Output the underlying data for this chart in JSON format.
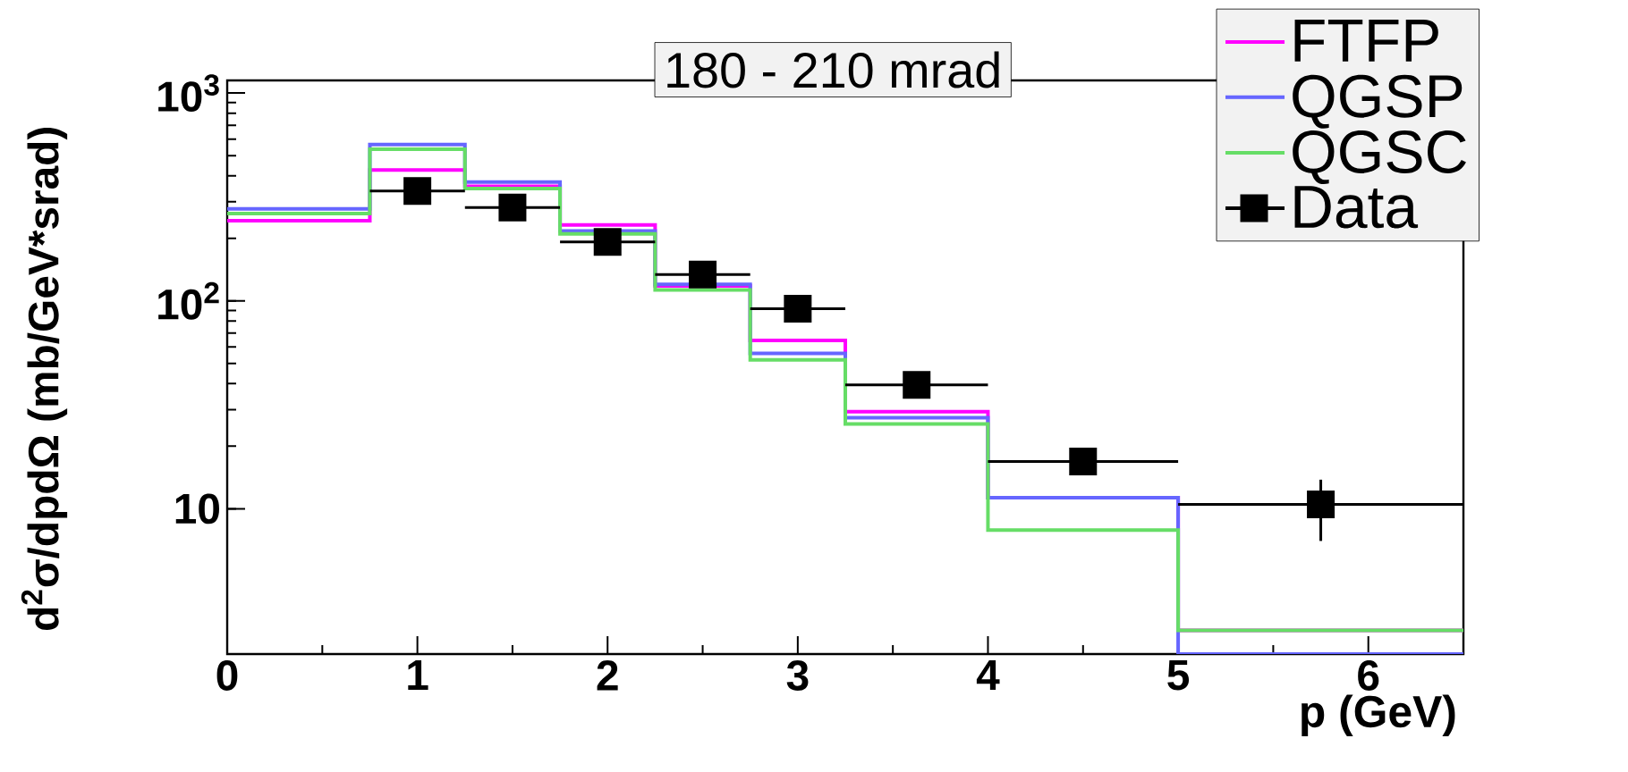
{
  "chart_data": {
    "type": "histogram",
    "title": "180 - 210 mrad",
    "xlabel": "p (GeV)",
    "ylabel": "d$^{2}$σ/dpdΩ (mb/GeV*srad)",
    "bins": [
      0,
      0.75,
      1.25,
      1.75,
      2.25,
      2.75,
      3.25,
      4,
      5,
      6.5
    ],
    "series": [
      {
        "name": "FTFP",
        "color": "#ff00ff",
        "values": [
          243,
          426,
          356,
          232,
          118,
          64.6,
          29.3,
          11.3,
          2.6
        ]
      },
      {
        "name": "QGSP",
        "color": "#6666ff",
        "values": [
          277,
          566,
          373,
          217,
          120,
          55.9,
          27.4,
          11.3,
          2
        ]
      },
      {
        "name": "QGSC",
        "color": "#66dd66",
        "values": [
          263,
          537,
          347,
          210,
          113,
          52,
          25.6,
          7.9,
          2.6
        ]
      },
      {
        "name": "Data",
        "type": "scatter",
        "color": "#000000",
        "marker": "square",
        "x": [
          1,
          1.5,
          2,
          2.5,
          3,
          3.625,
          4.5,
          5.75
        ],
        "values": [
          338,
          281,
          192,
          134,
          91.8,
          39.4,
          16.9,
          10.5
        ],
        "xerrors": [
          0.25,
          0.25,
          0.25,
          0.25,
          0.25,
          0.375,
          0.5,
          0.75
        ],
        "errors": [
          null,
          null,
          null,
          null,
          null,
          null,
          null,
          [
            7.0,
            13.8
          ]
        ]
      }
    ],
    "xlim": [
      0,
      6.5
    ],
    "ylim": [
      2,
      1150
    ],
    "log": true,
    "xticks": [
      0,
      1,
      2,
      3,
      4,
      5,
      6
    ],
    "yticks": [
      {
        "value": 10,
        "label": "10"
      },
      {
        "value": 100,
        "label": "10$^{2}$"
      },
      {
        "value": 1000,
        "label": "10$^{3}$"
      }
    ],
    "legend": "top right",
    "grid": false
  }
}
